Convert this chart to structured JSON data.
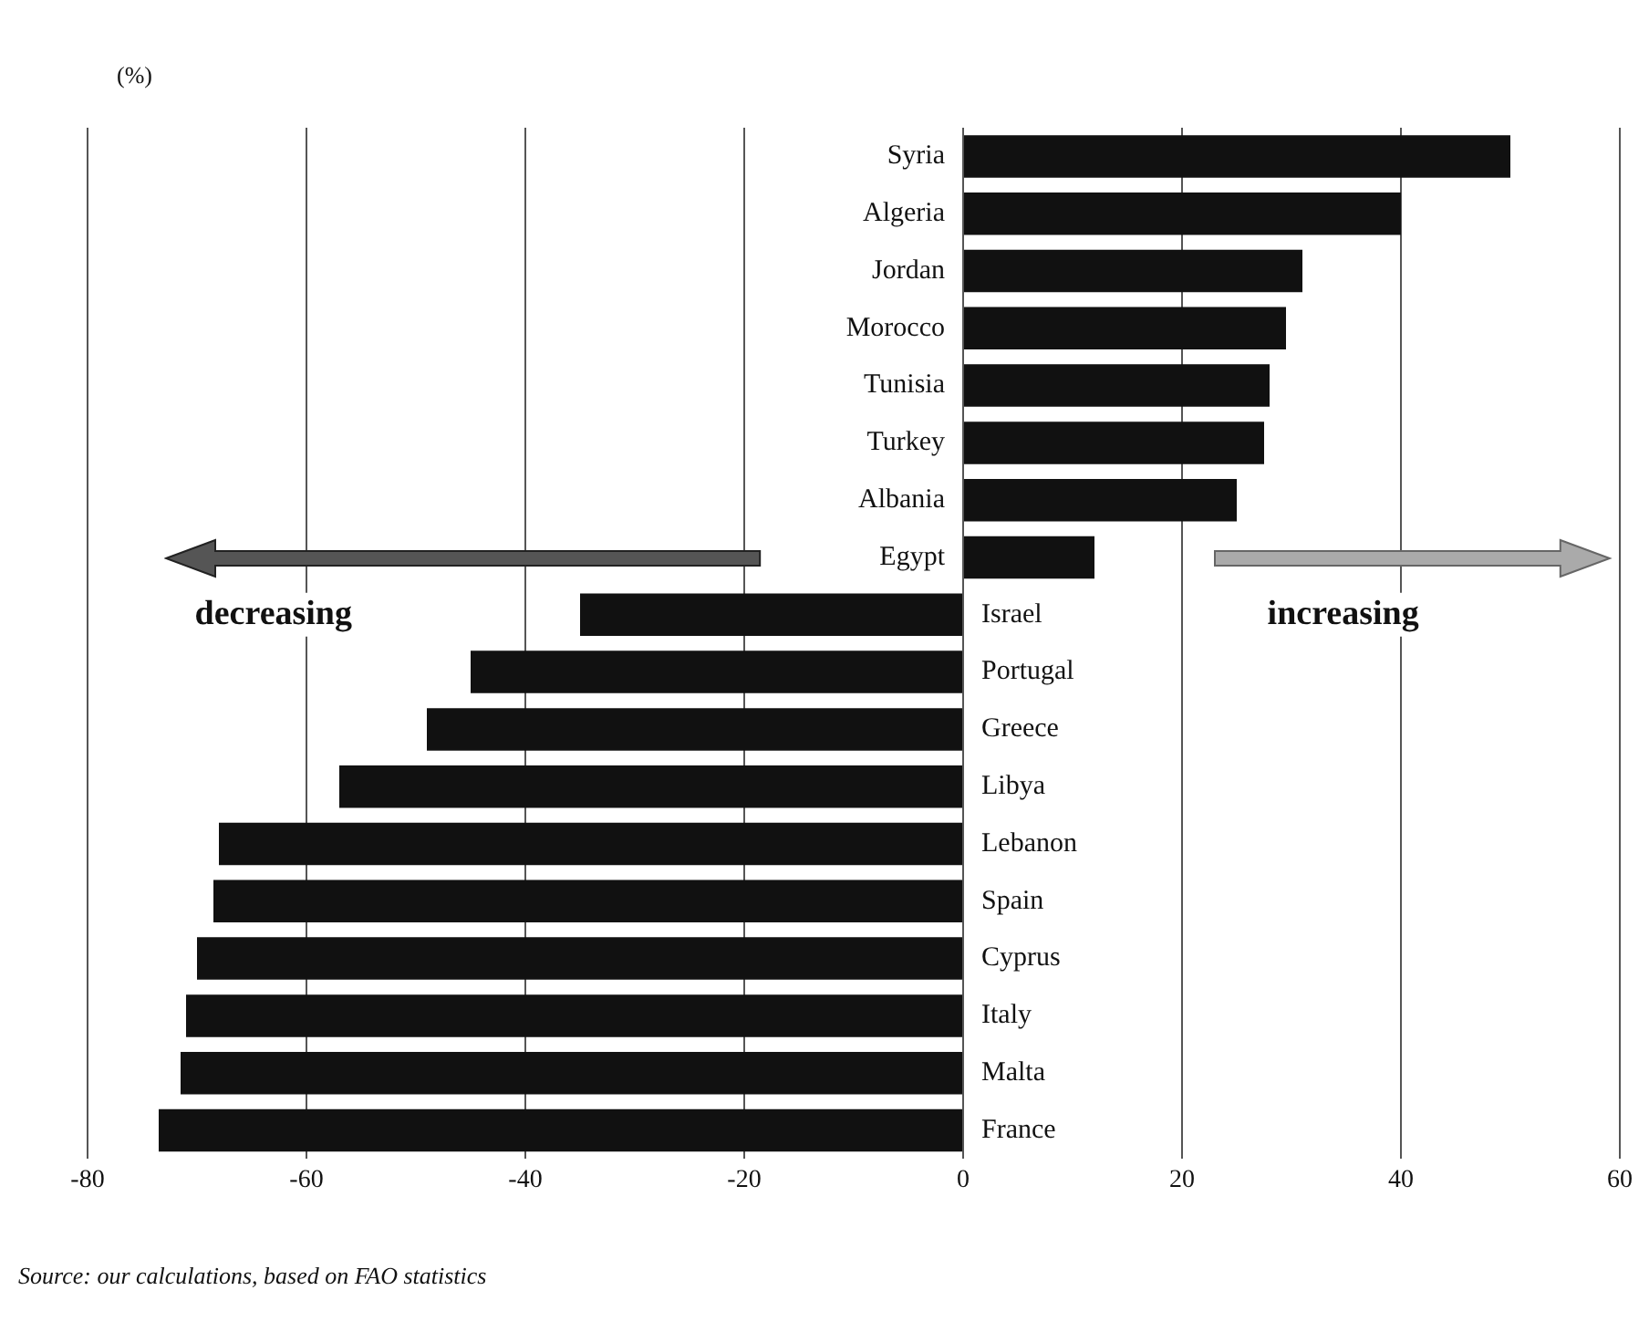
{
  "chart_data": {
    "type": "bar",
    "orientation": "horizontal",
    "xlabel": "(%)",
    "categories": [
      "Syria",
      "Algeria",
      "Jordan",
      "Morocco",
      "Tunisia",
      "Turkey",
      "Albania",
      "Egypt",
      "Israel",
      "Portugal",
      "Greece",
      "Libya",
      "Lebanon",
      "Spain",
      "Cyprus",
      "Italy",
      "Malta",
      "France"
    ],
    "values": [
      50,
      40,
      31,
      29.5,
      28,
      27.5,
      25,
      12,
      -35,
      -45,
      -49,
      -57,
      -68,
      -68.5,
      -70,
      -71,
      -71.5,
      -73.5
    ],
    "color": "#111111",
    "xlim": [
      -80,
      60
    ],
    "xticks": [
      -80,
      -60,
      -40,
      -20,
      0,
      20,
      40,
      60
    ],
    "grid": "x",
    "legend": false,
    "annotations": [
      "decreasing",
      "increasing",
      "Source: our calculations, based on FAO statistics"
    ]
  }
}
